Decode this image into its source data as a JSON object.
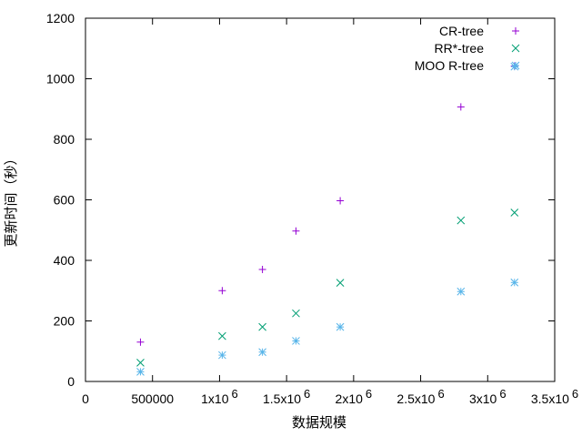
{
  "chart_data": {
    "type": "scatter",
    "title": "",
    "xlabel": "数据规模",
    "ylabel": "更新时间（秒）",
    "xlim": [
      0,
      3500000
    ],
    "ylim": [
      0,
      1200
    ],
    "x_ticks": [
      {
        "value": 0,
        "label": "0"
      },
      {
        "value": 500000,
        "label": "500000"
      },
      {
        "value": 1000000,
        "label": "1x10",
        "exp": "6"
      },
      {
        "value": 1500000,
        "label": "1.5x10",
        "exp": "6"
      },
      {
        "value": 2000000,
        "label": "2x10",
        "exp": "6"
      },
      {
        "value": 2500000,
        "label": "2.5x10",
        "exp": "6"
      },
      {
        "value": 3000000,
        "label": "3x10",
        "exp": "6"
      },
      {
        "value": 3500000,
        "label": "3.5x10",
        "exp": "6"
      }
    ],
    "y_ticks": [
      {
        "value": 0,
        "label": "0"
      },
      {
        "value": 200,
        "label": "200"
      },
      {
        "value": 400,
        "label": "400"
      },
      {
        "value": 600,
        "label": "600"
      },
      {
        "value": 800,
        "label": "800"
      },
      {
        "value": 1000,
        "label": "1000"
      },
      {
        "value": 1200,
        "label": "1200"
      }
    ],
    "legend_position": "top-right",
    "series": [
      {
        "name": "CR-tree",
        "marker": "plus",
        "color": "#9400d3",
        "points": [
          [
            410000,
            130
          ],
          [
            1020000,
            300
          ],
          [
            1320000,
            370
          ],
          [
            1570000,
            497
          ],
          [
            1900000,
            597
          ],
          [
            2800000,
            907
          ],
          [
            3200000,
            1042
          ]
        ]
      },
      {
        "name": "RR*-tree",
        "marker": "cross",
        "color": "#009e73",
        "points": [
          [
            410000,
            62
          ],
          [
            1020000,
            150
          ],
          [
            1320000,
            180
          ],
          [
            1570000,
            225
          ],
          [
            1900000,
            326
          ],
          [
            2800000,
            532
          ],
          [
            3200000,
            558
          ]
        ]
      },
      {
        "name": "MOO R-tree",
        "marker": "star",
        "color": "#56b4e9",
        "points": [
          [
            410000,
            32
          ],
          [
            1020000,
            87
          ],
          [
            1320000,
            97
          ],
          [
            1570000,
            134
          ],
          [
            1900000,
            180
          ],
          [
            2800000,
            297
          ],
          [
            3200000,
            327
          ],
          [
            3200000,
            1040
          ]
        ]
      }
    ]
  }
}
